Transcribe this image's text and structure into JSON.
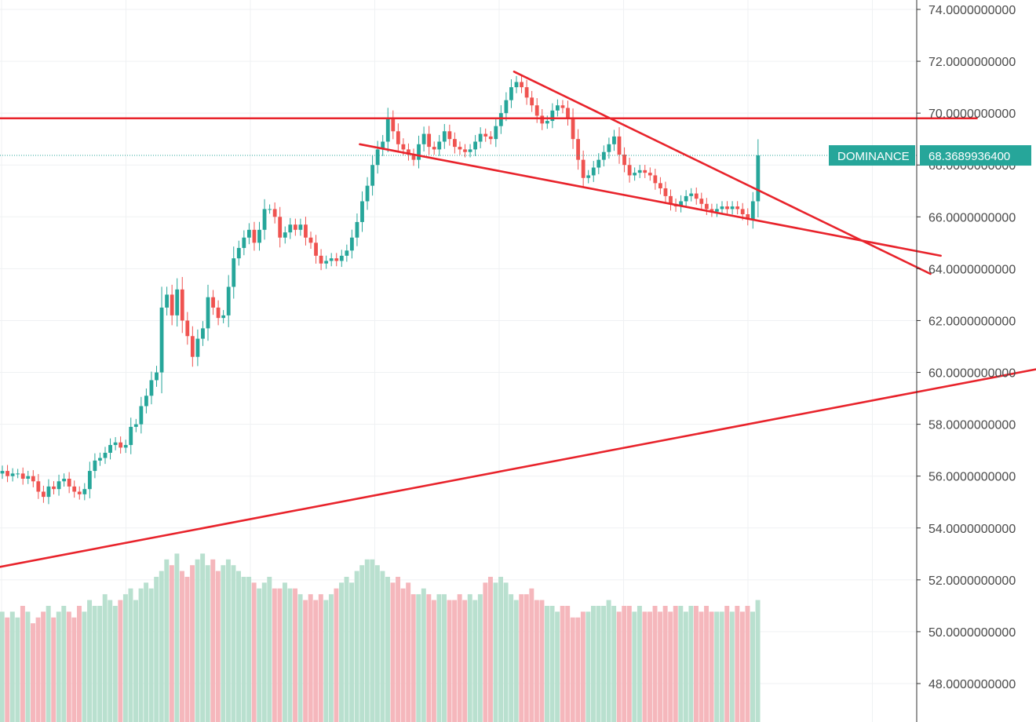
{
  "chart_data": {
    "type": "candlestick",
    "title": "",
    "xlabel": "",
    "ylabel": "",
    "y_axis_side": "right",
    "ylim": [
      47,
      74.4
    ],
    "x_range": [
      0,
      190
    ],
    "grid": true,
    "y_ticks": [
      {
        "value": 74,
        "label": "74.0000000000"
      },
      {
        "value": 72,
        "label": "72.0000000000"
      },
      {
        "value": 70,
        "label": "70.0000000000"
      },
      {
        "value": 68,
        "label": "68.0000000000"
      },
      {
        "value": 66,
        "label": "66.0000000000"
      },
      {
        "value": 64,
        "label": "64.0000000000"
      },
      {
        "value": 62,
        "label": "62.0000000000"
      },
      {
        "value": 60,
        "label": "60.0000000000"
      },
      {
        "value": 58,
        "label": "58.0000000000"
      },
      {
        "value": 56,
        "label": "56.0000000000"
      },
      {
        "value": 54,
        "label": "54.0000000000"
      },
      {
        "value": 52,
        "label": "52.0000000000"
      },
      {
        "value": 50,
        "label": "50.0000000000"
      },
      {
        "value": 48,
        "label": "48.0000000000"
      }
    ],
    "price_badge": {
      "name": "DOMINANCE",
      "value": 68.36899364,
      "label": "68.3689936400"
    },
    "colors": {
      "up": "#26a69a",
      "down": "#ef5350",
      "up_volume": "#b9e0cf",
      "down_volume": "#f5b7bc",
      "trendline": "#e8232b",
      "grid": "#eff1f3",
      "axis": "#333333",
      "badge": "#26a69a"
    },
    "close_series": [
      56.2,
      56.0,
      56.1,
      56.1,
      55.9,
      56.0,
      55.8,
      55.4,
      55.2,
      55.6,
      55.5,
      55.8,
      55.9,
      55.6,
      55.4,
      55.3,
      55.5,
      56.2,
      56.6,
      56.7,
      56.9,
      57.2,
      57.3,
      57.1,
      57.2,
      57.9,
      58.0,
      58.7,
      59.1,
      59.7,
      60.0,
      62.5,
      63.0,
      62.2,
      63.2,
      62.0,
      61.4,
      60.6,
      61.3,
      61.7,
      62.9,
      62.5,
      62.1,
      62.2,
      63.3,
      64.4,
      64.8,
      65.2,
      65.5,
      65.0,
      65.5,
      66.3,
      66.3,
      66.0,
      65.2,
      65.4,
      65.7,
      65.5,
      65.7,
      65.2,
      65.0,
      64.5,
      64.2,
      64.3,
      64.4,
      64.3,
      64.5,
      64.7,
      65.2,
      65.8,
      66.6,
      67.2,
      68.0,
      68.6,
      68.9,
      69.8,
      69.3,
      68.8,
      68.6,
      68.4,
      68.2,
      68.8,
      69.2,
      68.7,
      68.6,
      68.9,
      69.3,
      69.0,
      68.7,
      68.6,
      68.5,
      68.6,
      68.9,
      69.2,
      69.1,
      69.0,
      69.5,
      70.0,
      70.5,
      71.0,
      71.2,
      71.0,
      70.6,
      70.3,
      69.9,
      69.6,
      69.7,
      70.1,
      70.3,
      70.2,
      69.8,
      69.0,
      68.2,
      67.5,
      67.6,
      67.9,
      68.2,
      68.5,
      68.8,
      69.1,
      68.4,
      68.0,
      67.6,
      67.7,
      67.8,
      67.7,
      67.6,
      67.3,
      67.1,
      66.8,
      66.5,
      66.4,
      66.6,
      66.8,
      66.9,
      66.7,
      66.5,
      66.3,
      66.2,
      66.3,
      66.4,
      66.3,
      66.4,
      66.3,
      66.1,
      65.9,
      66.6,
      68.37
    ],
    "volume": [
      0.19,
      0.18,
      0.19,
      0.18,
      0.2,
      0.19,
      0.17,
      0.18,
      0.19,
      0.2,
      0.18,
      0.19,
      0.2,
      0.19,
      0.18,
      0.2,
      0.19,
      0.21,
      0.2,
      0.2,
      0.22,
      0.21,
      0.2,
      0.21,
      0.22,
      0.23,
      0.21,
      0.23,
      0.24,
      0.23,
      0.25,
      0.26,
      0.28,
      0.27,
      0.29,
      0.26,
      0.25,
      0.27,
      0.28,
      0.29,
      0.27,
      0.28,
      0.26,
      0.27,
      0.28,
      0.27,
      0.26,
      0.25,
      0.25,
      0.24,
      0.23,
      0.24,
      0.25,
      0.23,
      0.23,
      0.24,
      0.23,
      0.23,
      0.22,
      0.21,
      0.22,
      0.21,
      0.22,
      0.21,
      0.22,
      0.23,
      0.24,
      0.25,
      0.24,
      0.26,
      0.27,
      0.28,
      0.28,
      0.27,
      0.26,
      0.25,
      0.24,
      0.25,
      0.23,
      0.24,
      0.22,
      0.22,
      0.23,
      0.22,
      0.21,
      0.22,
      0.22,
      0.21,
      0.21,
      0.22,
      0.21,
      0.22,
      0.21,
      0.22,
      0.24,
      0.25,
      0.24,
      0.25,
      0.24,
      0.22,
      0.21,
      0.22,
      0.22,
      0.23,
      0.21,
      0.21,
      0.2,
      0.2,
      0.19,
      0.2,
      0.2,
      0.18,
      0.18,
      0.19,
      0.19,
      0.2,
      0.2,
      0.2,
      0.21,
      0.2,
      0.19,
      0.2,
      0.2,
      0.19,
      0.2,
      0.19,
      0.19,
      0.2,
      0.19,
      0.2,
      0.19,
      0.2,
      0.2,
      0.19,
      0.2,
      0.2,
      0.19,
      0.2,
      0.19,
      0.19,
      0.19,
      0.2,
      0.19,
      0.2,
      0.19,
      0.2,
      0.19,
      0.21
    ],
    "trendlines": [
      {
        "name": "horizontal-resistance",
        "x1": 0,
        "y1": 69.8,
        "x2": 190,
        "y2": 69.8
      },
      {
        "name": "wedge-upper",
        "x1": 100,
        "y1": 71.6,
        "x2": 181,
        "y2": 63.8
      },
      {
        "name": "wedge-lower",
        "x1": 70,
        "y1": 68.8,
        "x2": 183,
        "y2": 64.5
      },
      {
        "name": "long-term-support",
        "x1": 0,
        "y1": 52.5,
        "x2": 238,
        "y2": 61.5
      }
    ]
  }
}
